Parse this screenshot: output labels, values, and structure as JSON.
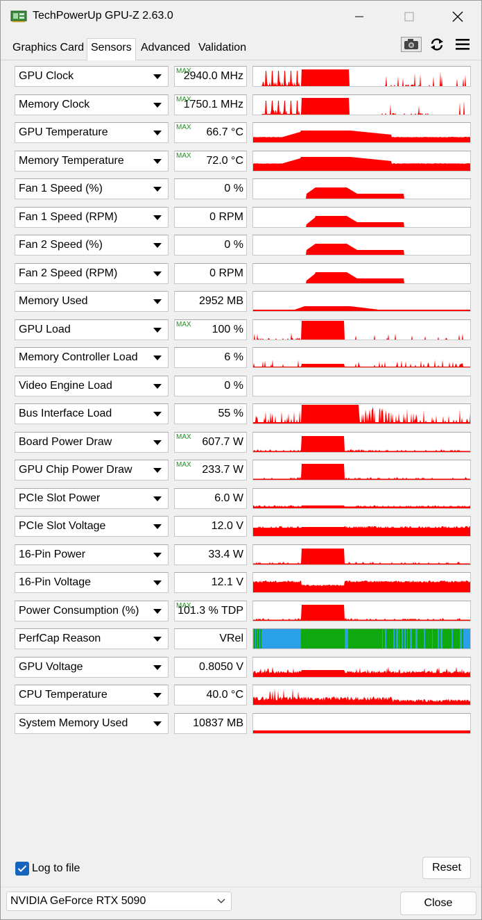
{
  "window": {
    "title": "TechPowerUp GPU-Z 2.63.0"
  },
  "tabs": [
    {
      "label": "Graphics Card",
      "active": false
    },
    {
      "label": "Sensors",
      "active": true
    },
    {
      "label": "Advanced",
      "active": false
    },
    {
      "label": "Validation",
      "active": false
    }
  ],
  "toolbar": {
    "icons": [
      "camera-icon",
      "refresh-icon",
      "menu-icon"
    ]
  },
  "colors": {
    "graph_red": "#ff0000",
    "perfcap_blue": "#2aa0e8",
    "perfcap_green": "#10a810",
    "max_green": "#1f8f1f",
    "checkbox_blue": "#1565c0"
  },
  "max_tag": "MAX",
  "sensors": [
    {
      "label": "GPU Clock",
      "value": "2940.0 MHz",
      "max": true,
      "graph": "clock"
    },
    {
      "label": "Memory Clock",
      "value": "1750.1 MHz",
      "max": true,
      "graph": "memclock"
    },
    {
      "label": "GPU Temperature",
      "value": "66.7 °C",
      "max": true,
      "graph": "gputemp"
    },
    {
      "label": "Memory Temperature",
      "value": "72.0 °C",
      "max": true,
      "graph": "memtemp"
    },
    {
      "label": "Fan 1 Speed (%)",
      "value": "0 %",
      "max": false,
      "graph": "fan"
    },
    {
      "label": "Fan 1 Speed (RPM)",
      "value": "0 RPM",
      "max": false,
      "graph": "fanrpm"
    },
    {
      "label": "Fan 2 Speed (%)",
      "value": "0 %",
      "max": false,
      "graph": "fan"
    },
    {
      "label": "Fan 2 Speed (RPM)",
      "value": "0 RPM",
      "max": false,
      "graph": "fanrpm"
    },
    {
      "label": "Memory Used",
      "value": "2952 MB",
      "max": false,
      "graph": "memused"
    },
    {
      "label": "GPU Load",
      "value": "100 %",
      "max": true,
      "graph": "load"
    },
    {
      "label": "Memory Controller Load",
      "value": "6 %",
      "max": false,
      "graph": "mcload"
    },
    {
      "label": "Video Engine Load",
      "value": "0 %",
      "max": false,
      "graph": "none"
    },
    {
      "label": "Bus Interface Load",
      "value": "55 %",
      "max": false,
      "graph": "bus"
    },
    {
      "label": "Board Power Draw",
      "value": "607.7 W",
      "max": true,
      "graph": "power"
    },
    {
      "label": "GPU Chip Power Draw",
      "value": "233.7 W",
      "max": true,
      "graph": "power"
    },
    {
      "label": "PCIe Slot Power",
      "value": "6.0 W",
      "max": false,
      "graph": "lowline"
    },
    {
      "label": "PCIe Slot Voltage",
      "value": "12.0 V",
      "max": false,
      "graph": "highline"
    },
    {
      "label": "16-Pin Power",
      "value": "33.4 W",
      "max": false,
      "graph": "power"
    },
    {
      "label": "16-Pin Voltage",
      "value": "12.1 V",
      "max": false,
      "graph": "pinvolt"
    },
    {
      "label": "Power Consumption (%)",
      "value": "101.3 % TDP",
      "max": true,
      "graph": "power"
    },
    {
      "label": "PerfCap Reason",
      "value": "VRel",
      "max": false,
      "graph": "perfcap"
    },
    {
      "label": "GPU Voltage",
      "value": "0.8050 V",
      "max": false,
      "graph": "volt"
    },
    {
      "label": "CPU Temperature",
      "value": "40.0 °C",
      "max": false,
      "graph": "cputemp"
    },
    {
      "label": "System Memory Used",
      "value": "10837 MB",
      "max": false,
      "graph": "sysmem"
    }
  ],
  "footer": {
    "log_label": "Log to file",
    "log_checked": true,
    "reset_label": "Reset",
    "gpu_selected": "NVIDIA GeForce RTX 5090",
    "close_label": "Close"
  }
}
